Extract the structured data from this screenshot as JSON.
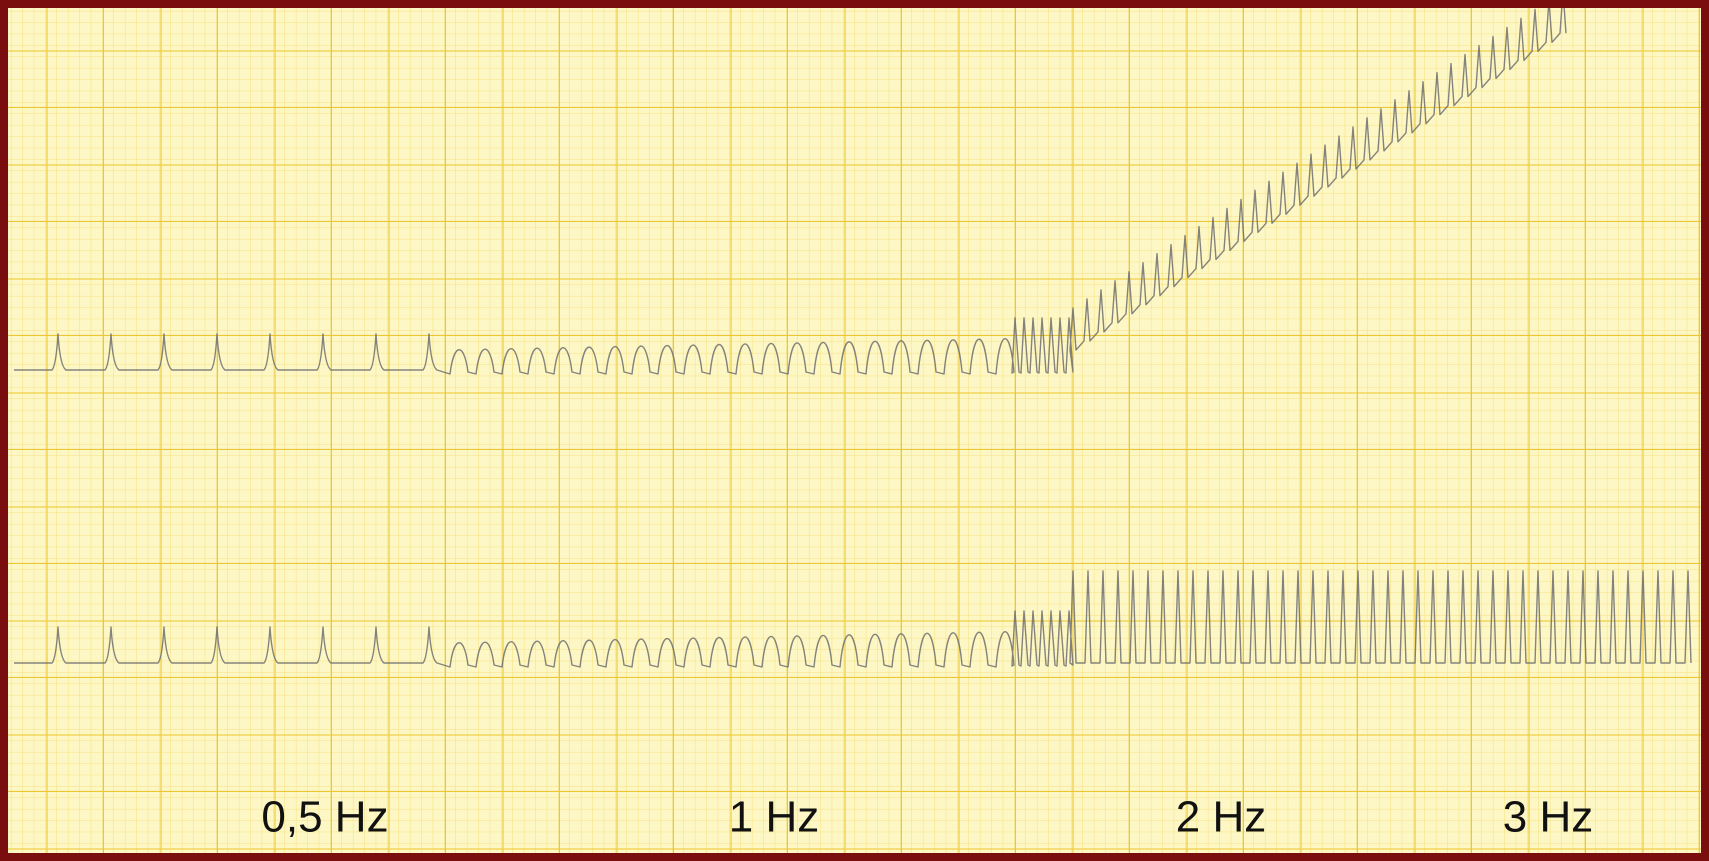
{
  "labels": [
    "0,5 Hz",
    "1 Hz",
    "2 Hz",
    "3 Hz"
  ]
}
